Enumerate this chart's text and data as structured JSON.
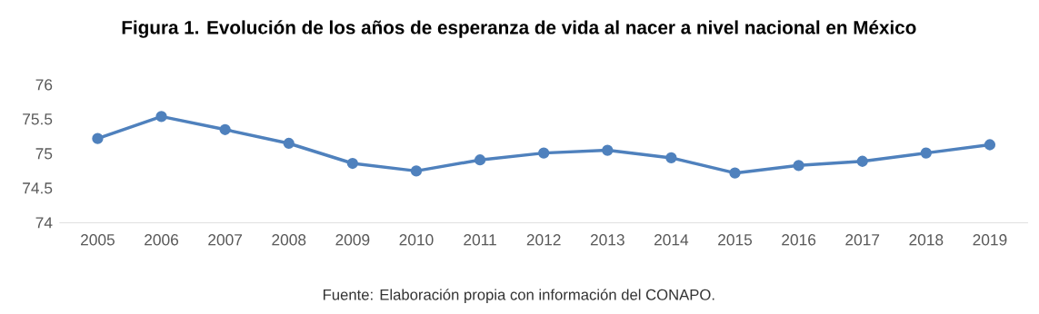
{
  "chart_data": {
    "type": "line",
    "title": "Figura 1. Evolución de los años de esperanza de vida al nacer a nivel nacional en México",
    "categories": [
      "2005",
      "2006",
      "2007",
      "2008",
      "2009",
      "2010",
      "2011",
      "2012",
      "2013",
      "2014",
      "2015",
      "2016",
      "2017",
      "2018",
      "2019"
    ],
    "values": [
      75.22,
      75.54,
      75.35,
      75.15,
      74.86,
      74.75,
      74.91,
      75.01,
      75.05,
      74.94,
      74.72,
      74.83,
      74.89,
      75.01,
      75.13
    ],
    "color": "#4f81bd",
    "marker": "circle",
    "line_style": "solid",
    "grid": false,
    "ylim": [
      74,
      76
    ],
    "yticks": [
      74,
      74.5,
      75,
      75.5,
      76
    ],
    "annotations": [
      "Fuente: Elaboración propia con información del CONAPO."
    ]
  }
}
